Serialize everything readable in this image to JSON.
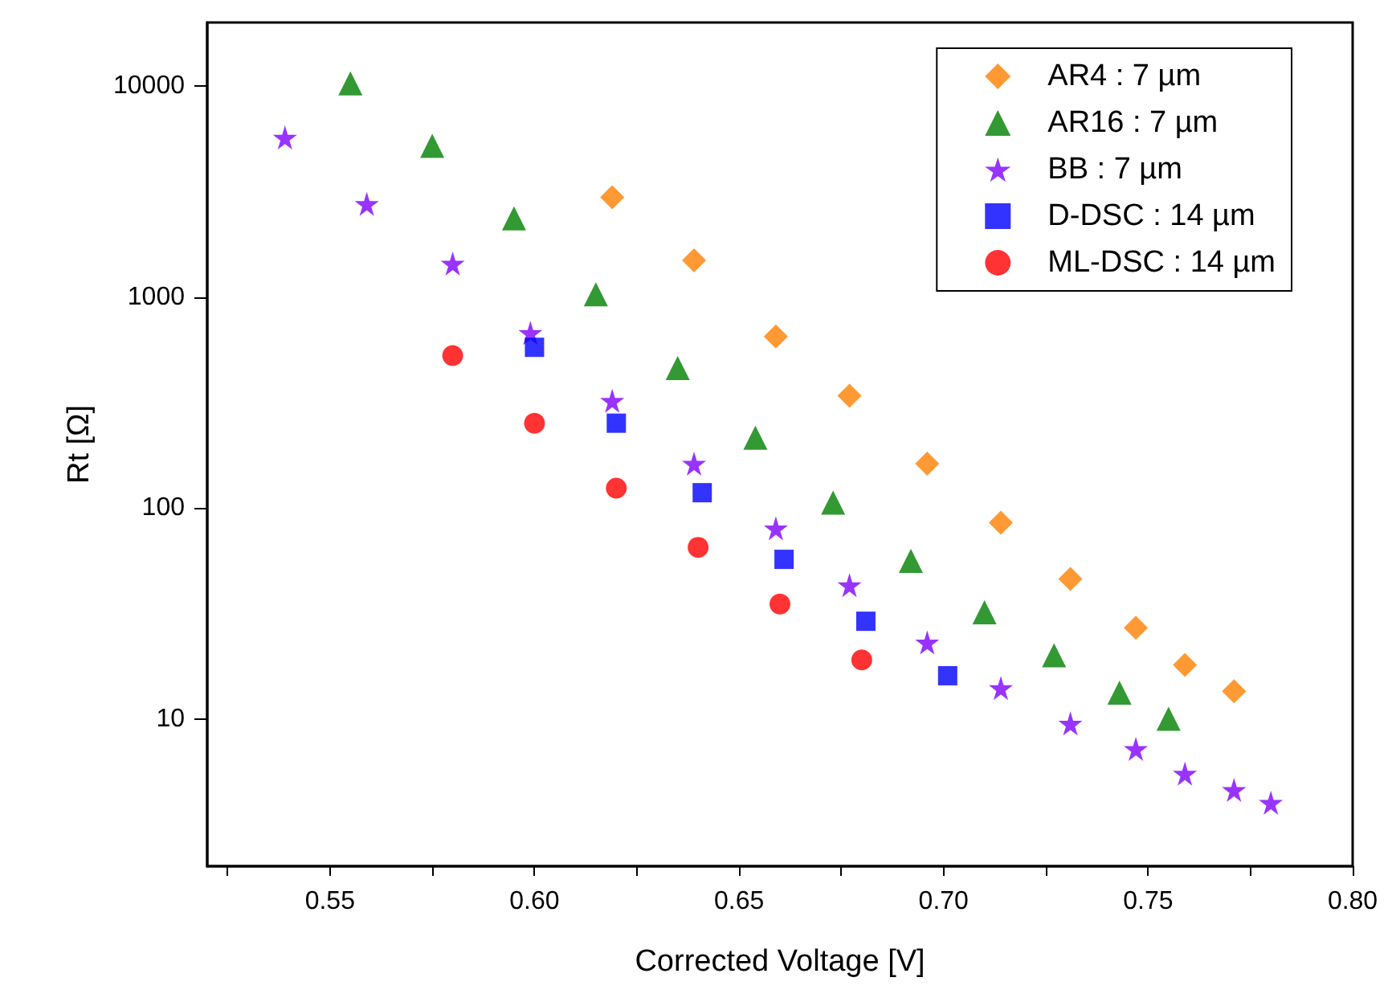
{
  "chart_data": {
    "type": "scatter",
    "xlabel": "Corrected Voltage [V]",
    "ylabel": "Rt [Ω]",
    "xlim": [
      0.52,
      0.8
    ],
    "xticks": [
      {
        "value": 0.525,
        "label": null
      },
      0.55,
      {
        "value": 0.575,
        "label": null
      },
      "0.60",
      {
        "value": 0.625,
        "label": null
      },
      0.65,
      {
        "value": 0.675,
        "label": null
      },
      "0.70",
      {
        "value": 0.725,
        "label": null
      },
      0.75,
      {
        "value": 0.775,
        "label": null
      },
      "0.80"
    ],
    "ylim": [
      2,
      20000
    ],
    "yticks": [
      10,
      100,
      1000,
      10000
    ],
    "log": "y",
    "grid": false,
    "legend": "top right",
    "series": [
      {
        "name": "AR4 : 7 µm",
        "color": "#ff8000",
        "marker": "diamond",
        "x": [
          0.619,
          0.639,
          0.659,
          0.677,
          0.696,
          0.714,
          0.731,
          0.747,
          0.759,
          0.771
        ],
        "values": [
          2970,
          1490,
          650,
          340,
          162,
          85,
          46,
          27,
          18,
          13.5
        ]
      },
      {
        "name": "AR16 : 7 µm",
        "color": "#008000",
        "marker": "triangle",
        "x": [
          0.555,
          0.575,
          0.595,
          0.615,
          0.635,
          0.654,
          0.673,
          0.692,
          0.71,
          0.727,
          0.743,
          0.755
        ],
        "values": [
          10300,
          5200,
          2360,
          1030,
          460,
          215,
          106,
          56,
          32,
          20,
          13.3,
          10
        ]
      },
      {
        "name": "BB : 7 µm",
        "color": "#8000ff",
        "marker": "star",
        "x": [
          0.539,
          0.559,
          0.58,
          0.599,
          0.619,
          0.639,
          0.659,
          0.677,
          0.696,
          0.714,
          0.731,
          0.747,
          0.759,
          0.771,
          0.78
        ],
        "values": [
          5700,
          2760,
          1440,
          675,
          322,
          162,
          80,
          43,
          23,
          14,
          9.5,
          7.2,
          5.5,
          4.6,
          4
        ]
      },
      {
        "name": "D-DSC : 14 µm",
        "color": "#0000ff",
        "marker": "square",
        "x": [
          0.6,
          0.62,
          0.641,
          0.661,
          0.681,
          0.701
        ],
        "values": [
          577,
          252,
          118,
          57,
          29,
          16
        ]
      },
      {
        "name": "ML-DSC : 14 µm",
        "color": "#ff0000",
        "marker": "circle",
        "x": [
          0.58,
          0.6,
          0.62,
          0.64,
          0.66,
          0.68
        ],
        "values": [
          527,
          252,
          124,
          65,
          35,
          19
        ]
      }
    ]
  }
}
